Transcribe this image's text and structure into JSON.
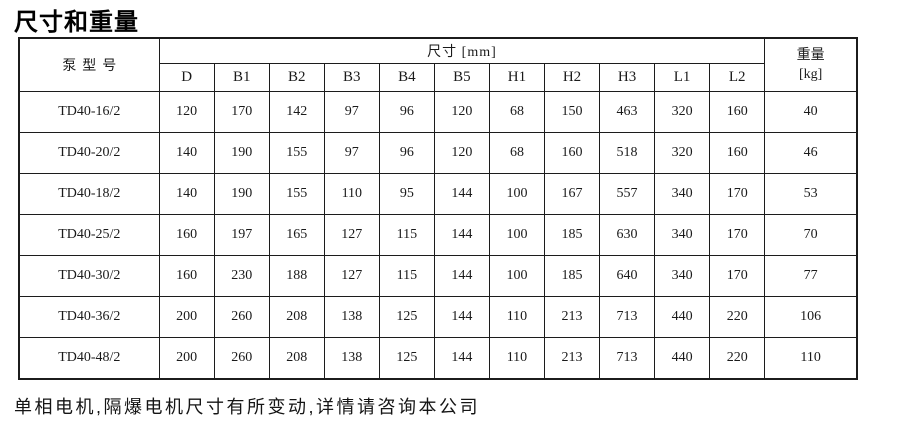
{
  "colors": {
    "background": "#ffffff",
    "text": "#1a1a1a",
    "border": "#1c1c1c"
  },
  "title": "尺寸和重量",
  "table": {
    "model_header": "泵型号",
    "dims_header": "尺寸 [mm]",
    "weight_header_line1": "重量",
    "weight_header_line2": "[kg]",
    "dim_columns": [
      "D",
      "B1",
      "B2",
      "B3",
      "B4",
      "B5",
      "H1",
      "H2",
      "H3",
      "L1",
      "L2"
    ],
    "rows": [
      {
        "model": "TD40-16/2",
        "values": [
          120,
          170,
          142,
          97,
          96,
          120,
          68,
          150,
          463,
          320,
          160
        ],
        "weight": 40
      },
      {
        "model": "TD40-20/2",
        "values": [
          140,
          190,
          155,
          97,
          96,
          120,
          68,
          160,
          518,
          320,
          160
        ],
        "weight": 46
      },
      {
        "model": "TD40-18/2",
        "values": [
          140,
          190,
          155,
          110,
          95,
          144,
          100,
          167,
          557,
          340,
          170
        ],
        "weight": 53
      },
      {
        "model": "TD40-25/2",
        "values": [
          160,
          197,
          165,
          127,
          115,
          144,
          100,
          185,
          630,
          340,
          170
        ],
        "weight": 70
      },
      {
        "model": "TD40-30/2",
        "values": [
          160,
          230,
          188,
          127,
          115,
          144,
          100,
          185,
          640,
          340,
          170
        ],
        "weight": 77
      },
      {
        "model": "TD40-36/2",
        "values": [
          200,
          260,
          208,
          138,
          125,
          144,
          110,
          213,
          713,
          440,
          220
        ],
        "weight": 106
      },
      {
        "model": "TD40-48/2",
        "values": [
          200,
          260,
          208,
          138,
          125,
          144,
          110,
          213,
          713,
          440,
          220
        ],
        "weight": 110
      }
    ]
  },
  "footer_note": "单相电机,隔爆电机尺寸有所变动,详情请咨询本公司"
}
